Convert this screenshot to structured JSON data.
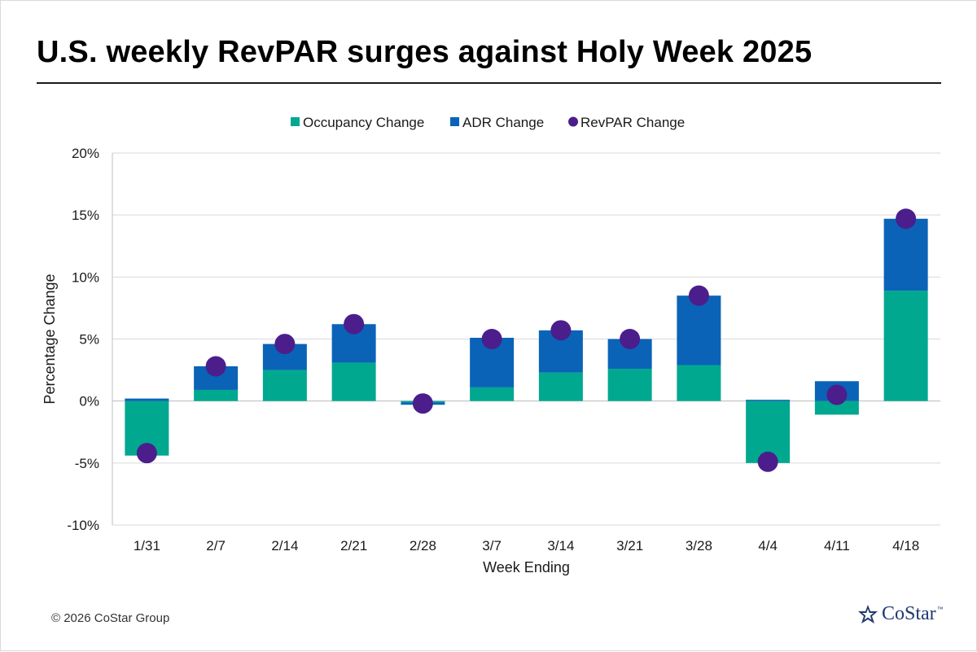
{
  "title": "U.S. weekly RevPAR surges against Holy Week 2025",
  "footer": "© 2026 CoStar Group",
  "logo": {
    "text": "CoStar",
    "tm": "™",
    "icon": "costar-star-icon"
  },
  "colors": {
    "occupancy": "#00A88F",
    "adr": "#0A63B7",
    "revpar": "#4B1E8C",
    "logo": "#1f3a6e"
  },
  "chart_data": {
    "type": "bar",
    "stacked": true,
    "xlabel": "Week Ending",
    "ylabel": "Percentage Change",
    "ylim": [
      -10,
      20
    ],
    "yticks": [
      -10,
      -5,
      0,
      5,
      10,
      15,
      20
    ],
    "ytick_labels": [
      "-10%",
      "-5%",
      "0%",
      "5%",
      "10%",
      "15%",
      "20%"
    ],
    "grid": true,
    "legend_position": "top",
    "categories": [
      "1/31",
      "2/7",
      "2/14",
      "2/21",
      "2/28",
      "3/7",
      "3/14",
      "3/21",
      "3/28",
      "4/4",
      "4/11",
      "4/18"
    ],
    "series": [
      {
        "name": "Occupancy Change",
        "type": "bar",
        "values": [
          -4.4,
          0.9,
          2.5,
          3.1,
          -0.1,
          1.1,
          2.3,
          2.6,
          2.9,
          -5.0,
          -1.1,
          8.9
        ]
      },
      {
        "name": "ADR Change",
        "type": "bar",
        "values": [
          0.2,
          1.9,
          2.1,
          3.1,
          -0.2,
          4.0,
          3.4,
          2.4,
          5.6,
          0.1,
          1.6,
          5.8
        ]
      },
      {
        "name": "RevPAR Change",
        "type": "scatter",
        "values": [
          -4.2,
          2.8,
          4.6,
          6.2,
          -0.2,
          5.0,
          5.7,
          5.0,
          8.5,
          -4.9,
          0.5,
          14.7
        ]
      }
    ]
  }
}
